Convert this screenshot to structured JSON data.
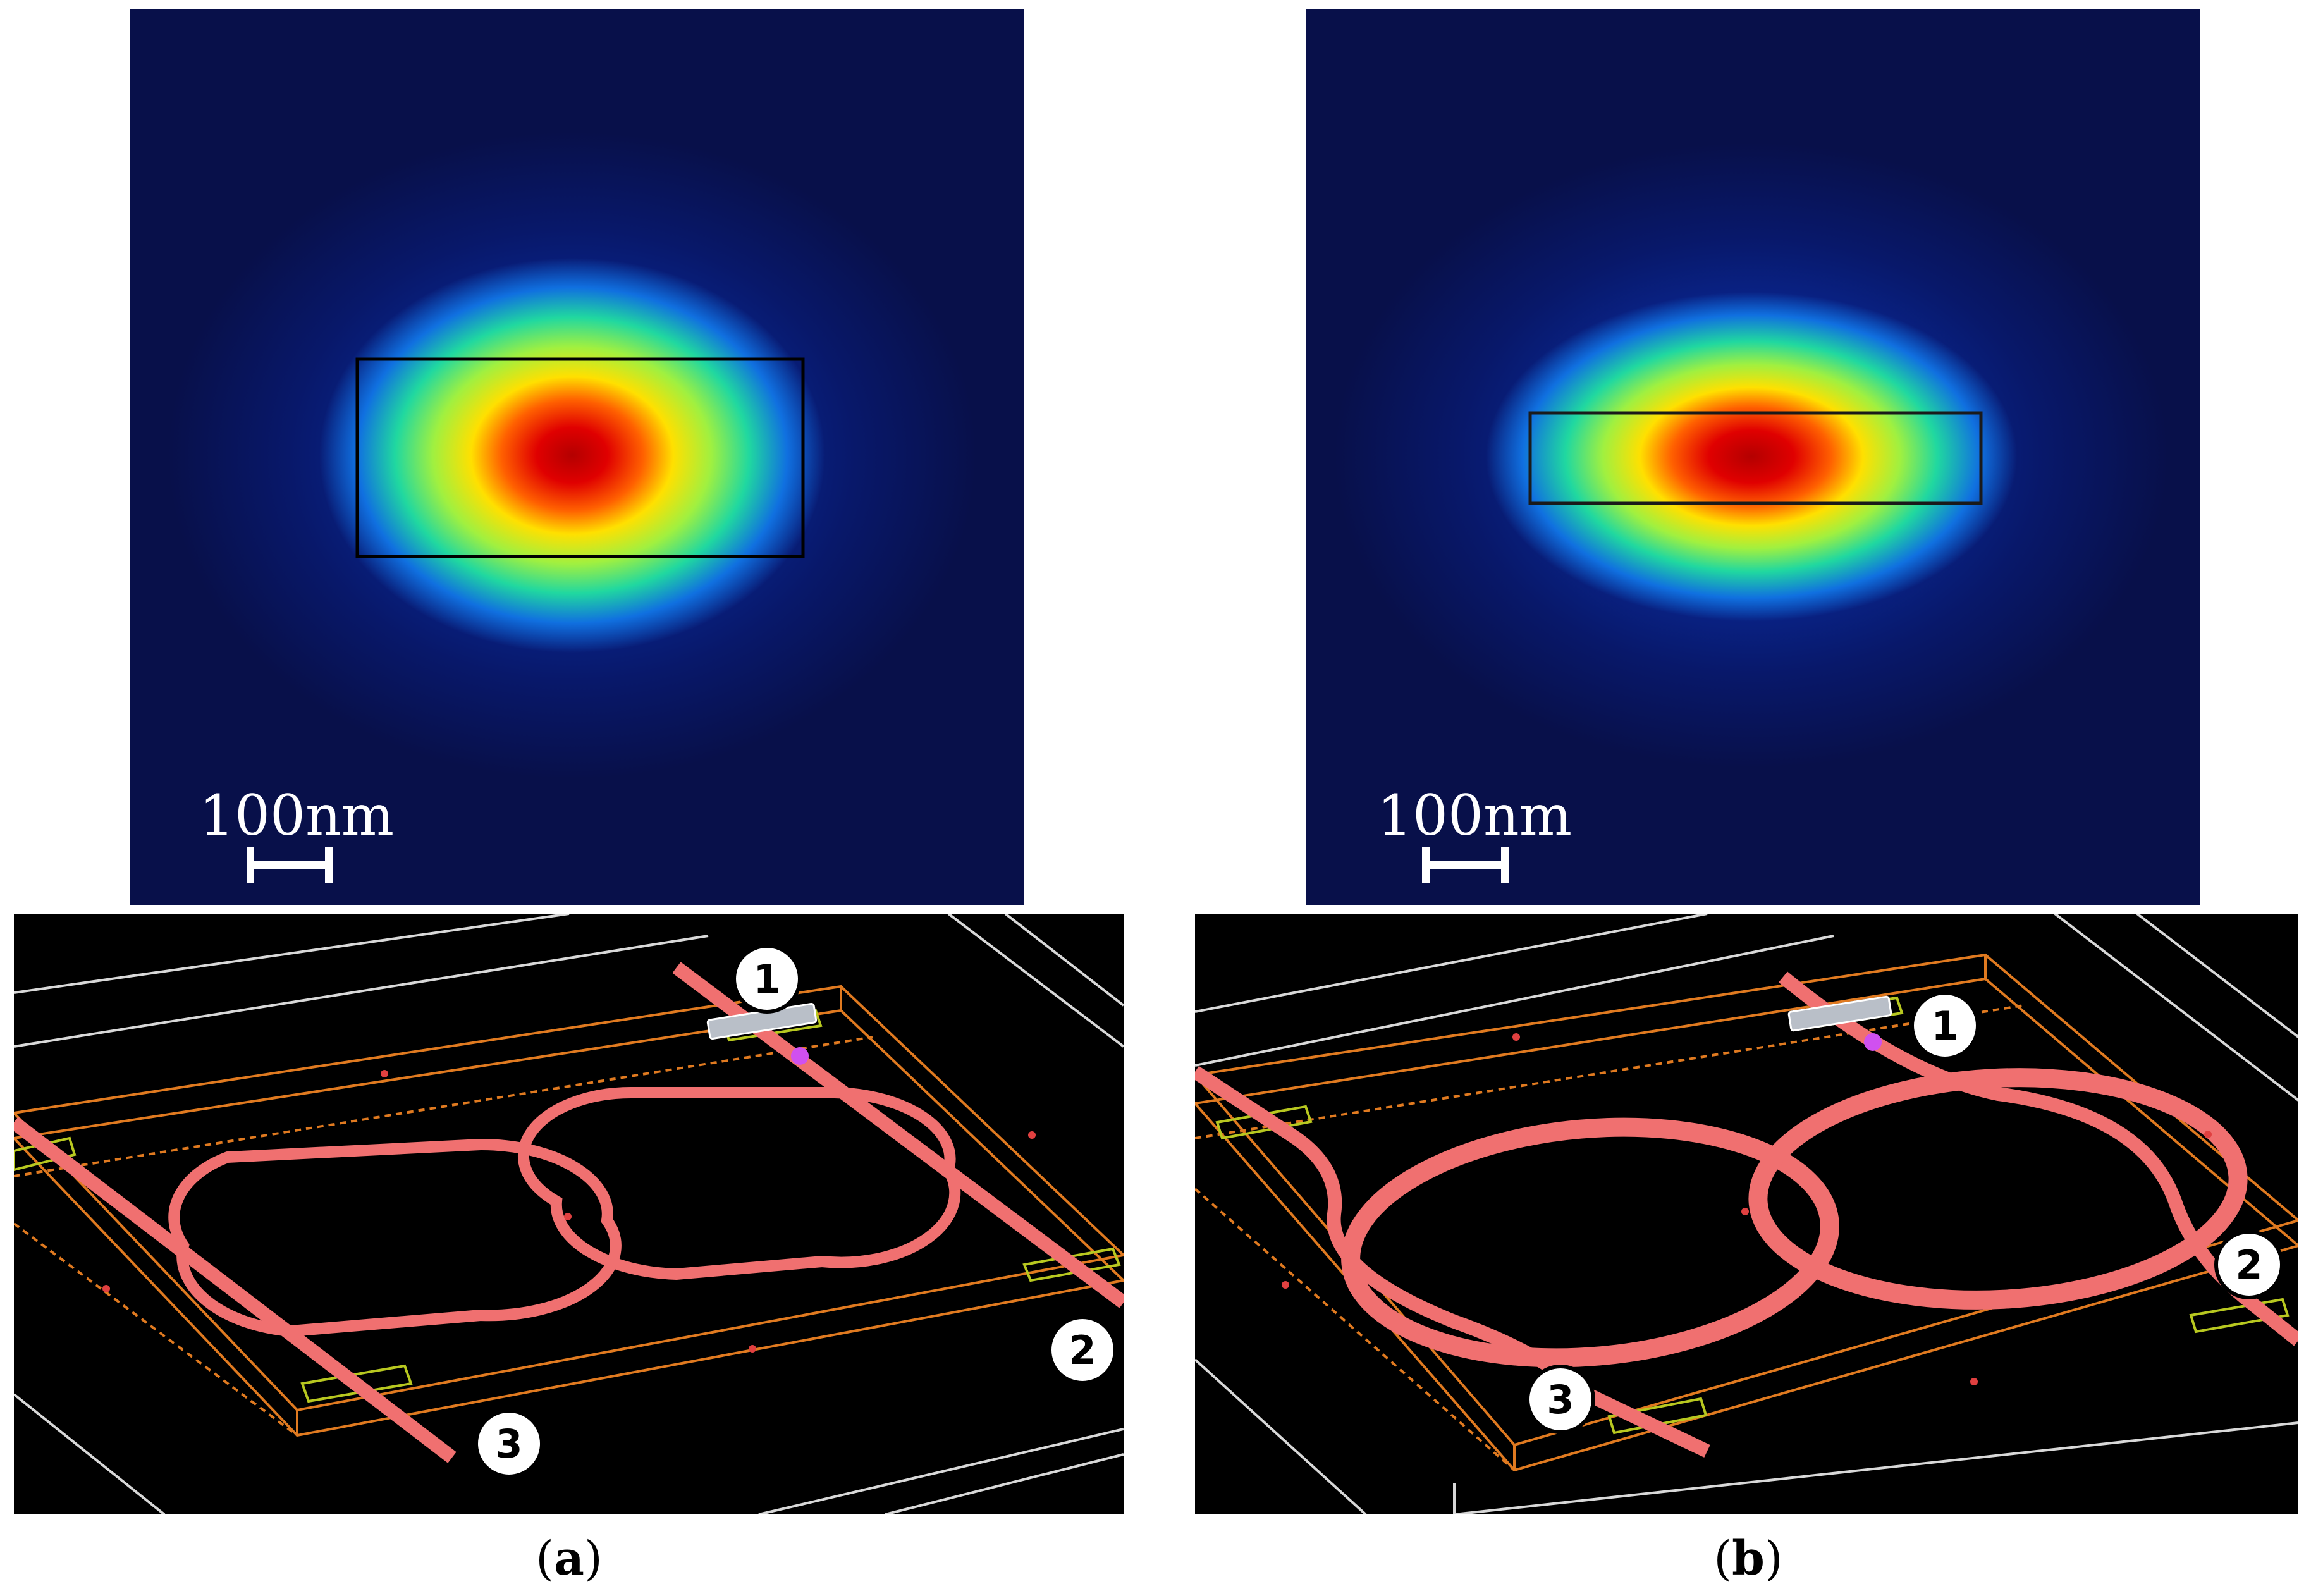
{
  "colors": {
    "field_background": "#08104a",
    "waveguide": "#f07070",
    "chip_frame": "#e07a20",
    "pad_outline": "#b8c820",
    "grid_line": "#d8d8d8",
    "layout_background": "#000000"
  },
  "panels": [
    {
      "id": "a",
      "scale_label": "100nm",
      "caption": {
        "open": "(",
        "letter": "a",
        "close": ")"
      },
      "ports": [
        "1",
        "2",
        "3"
      ]
    },
    {
      "id": "b",
      "scale_label": "100nm",
      "caption": {
        "open": "(",
        "letter": "b",
        "close": ")"
      },
      "ports": [
        "1",
        "2",
        "3"
      ]
    }
  ]
}
